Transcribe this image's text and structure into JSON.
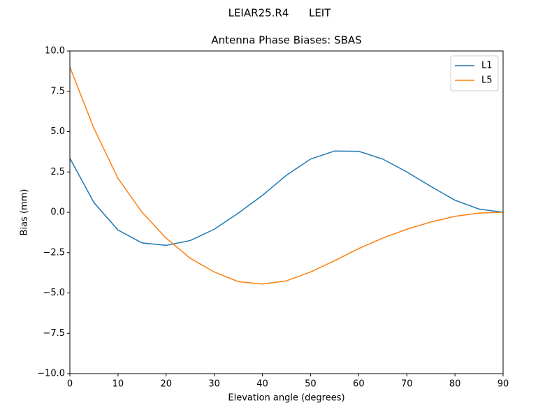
{
  "chart_data": {
    "type": "line",
    "suptitle": "LEIAR25.R4      LEIT",
    "title": "Antenna Phase Biases: SBAS",
    "x_label": "Elevation angle (degrees)",
    "y_label": "Bias (mm)",
    "x": [
      0,
      5,
      10,
      15,
      20,
      25,
      30,
      35,
      40,
      45,
      50,
      55,
      60,
      65,
      70,
      75,
      80,
      85,
      90
    ],
    "series": [
      {
        "name": "L1",
        "color": "#1f77b4",
        "values": [
          3.35,
          0.6,
          -1.1,
          -1.9,
          -2.05,
          -1.75,
          -1.05,
          -0.05,
          1.05,
          2.3,
          3.3,
          3.8,
          3.78,
          3.3,
          2.5,
          1.6,
          0.75,
          0.2,
          0
        ]
      },
      {
        "name": "L5",
        "color": "#ff7f0e",
        "values": [
          9.0,
          5.2,
          2.1,
          0,
          -1.6,
          -2.85,
          -3.7,
          -4.3,
          -4.45,
          -4.25,
          -3.7,
          -3.0,
          -2.25,
          -1.6,
          -1.05,
          -0.6,
          -0.25,
          -0.05,
          0
        ]
      }
    ],
    "xlim": [
      0,
      90
    ],
    "xticks": [
      0,
      10,
      20,
      30,
      40,
      50,
      60,
      70,
      80,
      90
    ],
    "ylim": [
      -10,
      10
    ],
    "yticks": [
      {
        "value": -10,
        "label": "−10.0"
      },
      {
        "value": -7.5,
        "label": "−7.5"
      },
      {
        "value": -5,
        "label": "−5.0"
      },
      {
        "value": -2.5,
        "label": "−2.5"
      },
      {
        "value": 0,
        "label": "0.0"
      },
      {
        "value": 2.5,
        "label": "2.5"
      },
      {
        "value": 5,
        "label": "5.0"
      },
      {
        "value": 7.5,
        "label": "7.5"
      },
      {
        "value": 10,
        "label": "10.0"
      }
    ],
    "legend": "upper right"
  }
}
